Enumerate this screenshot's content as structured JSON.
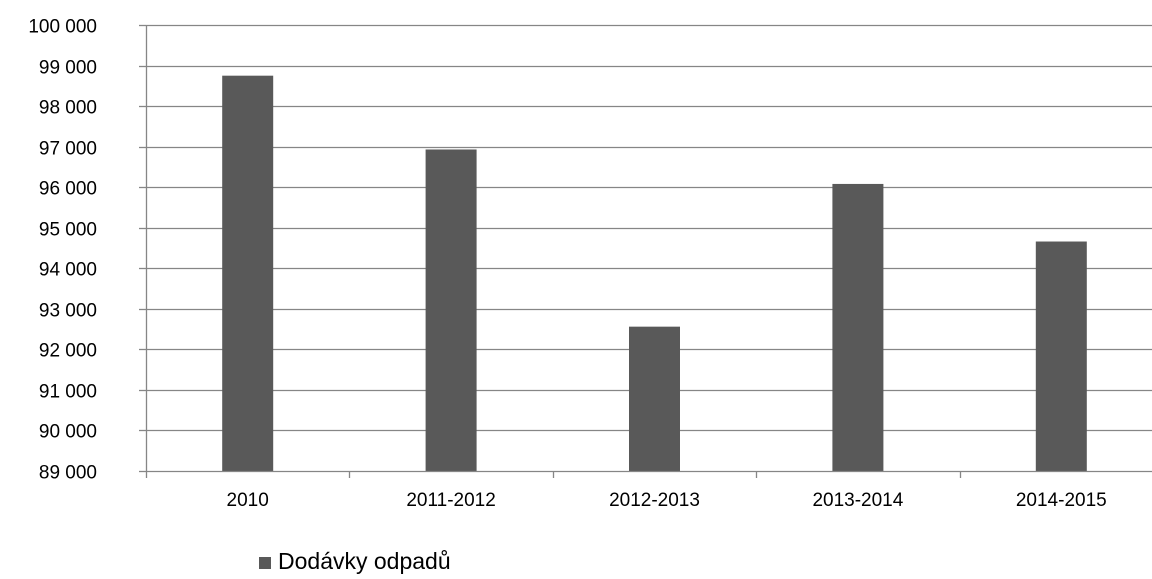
{
  "chart_data": {
    "type": "bar",
    "categories": [
      "2010",
      "2011-2012",
      "2012-2013",
      "2013-2014",
      "2014-2015"
    ],
    "series": [
      {
        "name": "Dodávky odpadů",
        "values": [
          98750,
          96930,
          92560,
          96080,
          94660
        ]
      }
    ],
    "ylim": [
      89000,
      100000
    ],
    "yticks": [
      89000,
      90000,
      91000,
      92000,
      93000,
      94000,
      95000,
      96000,
      97000,
      98000,
      99000,
      100000
    ],
    "ytick_labels": [
      "89 000",
      "90 000",
      "91 000",
      "92 000",
      "93 000",
      "94 000",
      "95 000",
      "96 000",
      "97 000",
      "98 000",
      "99 000",
      "100 000"
    ],
    "grid": true,
    "legend_position": "bottom",
    "bar_color": "#595959",
    "grid_color": "#868686",
    "title": "",
    "xlabel": "",
    "ylabel": ""
  },
  "legend": {
    "items": [
      {
        "label": "Dodávky odpadů",
        "color": "#595959"
      }
    ]
  }
}
